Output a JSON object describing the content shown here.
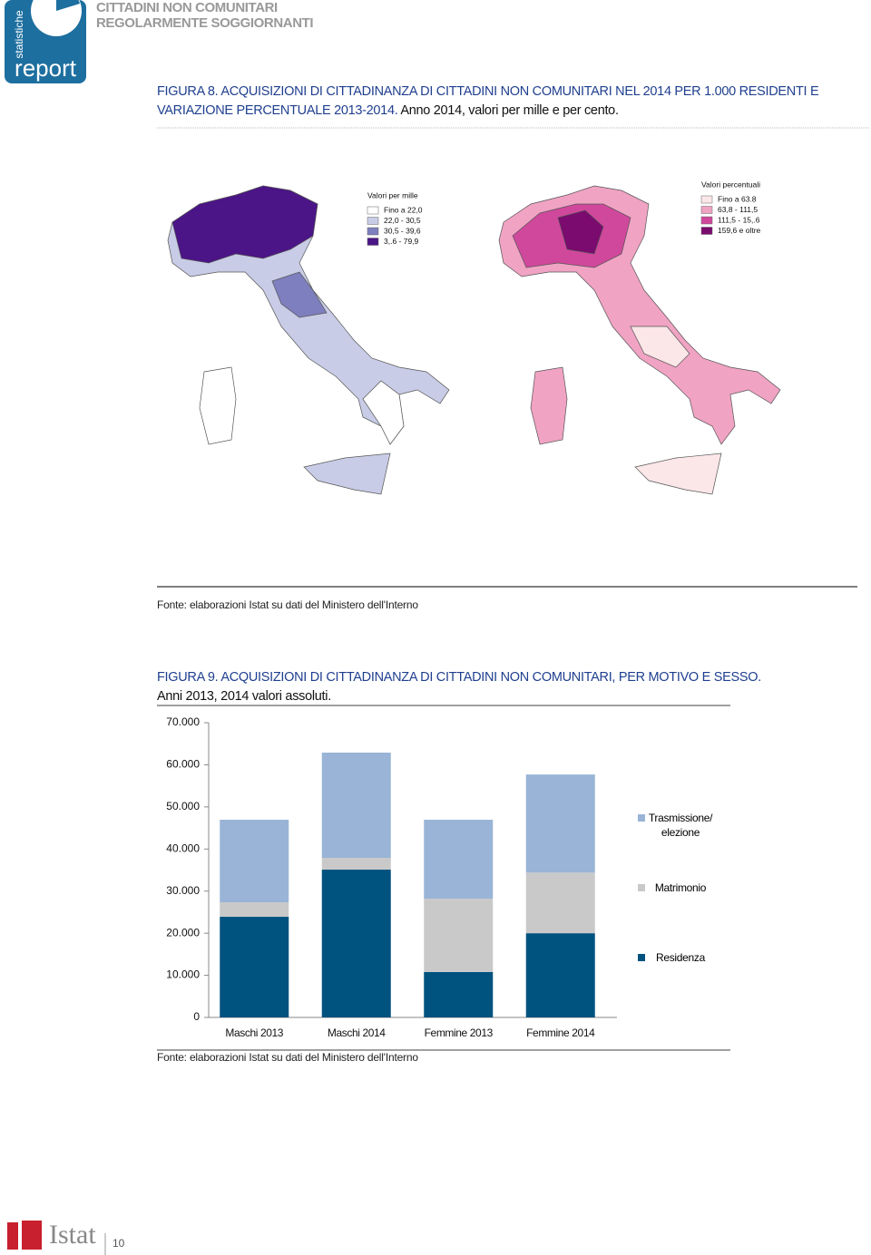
{
  "header": {
    "logo_small": "statistiche",
    "logo": "report",
    "title_line1": "CITTADINI NON COMUNITARI",
    "title_line2": "REGOLARMENTE SOGGIORNANTI"
  },
  "figure8": {
    "title": "FIGURA 8. ACQUISIZIONI DI CITTADINANZA DI CITTADINI NON COMUNITARI NEL 2014 PER 1.000 RESIDENTI E VARIAZIONE PERCENTUALE 2013-2014.",
    "subtitle": "Anno 2014, valori per mille e per cento.",
    "map_left": {
      "legend_title": "Valori per mille",
      "classes": [
        "Fino a 22,0",
        "22,0 - 30,5",
        "30,5 - 39,6",
        "3,.6 - 79,9"
      ],
      "colors": [
        "#ffffff",
        "#c8cce6",
        "#7e7fbe",
        "#4b1487"
      ]
    },
    "map_right": {
      "legend_title": "Valori percentuali",
      "classes": [
        "Fino a 63.8",
        "63,8 - 111,5",
        "111,5 - 15,.6",
        "159,6 e oltre"
      ],
      "colors": [
        "#fbe6e8",
        "#f0a3c3",
        "#d0489c",
        "#7b0b6f"
      ]
    },
    "source": "Fonte: elaborazioni Istat su dati del Ministero dell'Interno"
  },
  "chart_data": {
    "type": "stacked-bar",
    "title": "FIGURA 9. ACQUISIZIONI DI CITTADINANZA DI CITTADINI NON COMUNITARI, PER MOTIVO E SESSO.",
    "subtitle": "Anni 2013, 2014 valori assoluti.",
    "categories": [
      "Maschi 2013",
      "Maschi 2014",
      "Femmine 2013",
      "Femmine 2014"
    ],
    "series": [
      {
        "name": "Residenza",
        "color": "#00527f",
        "values": [
          23900,
          35100,
          10800,
          20000
        ]
      },
      {
        "name": "Matrimonio",
        "color": "#c9c9c9",
        "values": [
          3450,
          2800,
          17400,
          14400
        ]
      },
      {
        "name": "Trasmissione/ elezione",
        "color": "#99b4d6",
        "values": [
          19600,
          25000,
          18750,
          23300
        ]
      }
    ],
    "ylim": [
      0,
      70000
    ],
    "yticks": [
      0,
      {
        "value": 10000,
        "label": "10.000"
      },
      {
        "value": 20000,
        "label": "20.000"
      },
      {
        "value": 30000,
        "label": "30.000"
      },
      {
        "value": 40000,
        "label": "40.000"
      },
      {
        "value": 50000,
        "label": "50.000"
      },
      {
        "value": 60000,
        "label": "60.000"
      },
      {
        "value": 70000,
        "label": "70.000"
      }
    ],
    "source": "Fonte: elaborazioni Istat su dati del Ministero dell'Interno"
  },
  "footer": {
    "brand": "Istat",
    "page": "10"
  }
}
